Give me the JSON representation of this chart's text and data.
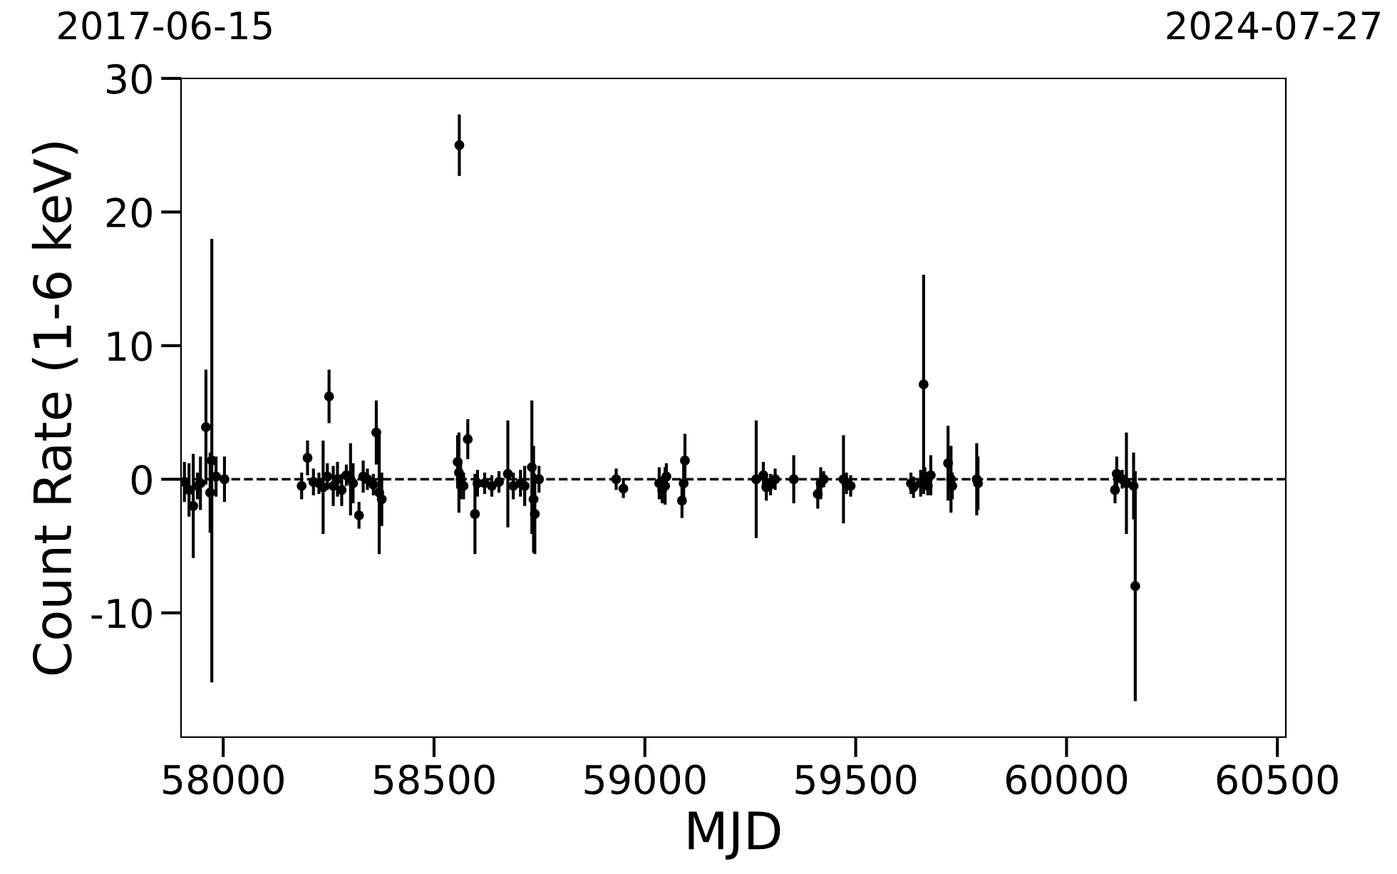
{
  "chart_data": {
    "type": "scatter",
    "xlabel": "MJD",
    "ylabel": "Count Rate (1-6 keV)",
    "xlim": [
      57900,
      60520
    ],
    "xticks": [
      58000,
      58500,
      59000,
      59500,
      60000,
      60500
    ],
    "ylim": [
      -19.3,
      30
    ],
    "yticks": [
      -10,
      0,
      10,
      20,
      30
    ],
    "annotations": [
      "2017-06-15",
      "2024-07-27"
    ],
    "marker": "circle",
    "grid": false,
    "legend": false,
    "ref_lines": [
      {
        "axis": "y",
        "value": 0,
        "color": "#000000",
        "line_style": "dashed"
      }
    ],
    "series": [
      {
        "color": "#000000",
        "x": [
          57908,
          57919,
          57929,
          57939,
          57946,
          57959,
          57969,
          57973,
          57983,
          58003,
          58186,
          58200,
          58214,
          58227,
          58237,
          58247,
          58251,
          58261,
          58271,
          58281,
          58292,
          58302,
          58308,
          58322,
          58332,
          58342,
          58356,
          58363,
          58370,
          58376,
          58556,
          58559,
          58560,
          58563,
          58570,
          58580,
          58597,
          58603,
          58620,
          58637,
          58654,
          58675,
          58688,
          58705,
          58715,
          58732,
          58736,
          58739,
          58749,
          58932,
          58949,
          59034,
          59041,
          59048,
          59051,
          59088,
          59092,
          59095,
          59264,
          59281,
          59288,
          59298,
          59309,
          59353,
          59410,
          59417,
          59424,
          59471,
          59478,
          59488,
          59631,
          59637,
          59654,
          59661,
          59664,
          59671,
          59678,
          59719,
          59726,
          59729,
          59787,
          59790,
          60115,
          60119,
          60132,
          60142,
          60159,
          60163
        ],
        "values": [
          -0.2,
          -0.8,
          -2.0,
          -0.5,
          -0.3,
          3.9,
          -1.0,
          1.4,
          0.2,
          0.0,
          -0.5,
          1.6,
          -0.2,
          -0.3,
          -0.6,
          0.2,
          6.2,
          -0.5,
          0.0,
          -0.8,
          0.3,
          0.0,
          -0.3,
          -2.7,
          0.2,
          0.0,
          -0.4,
          3.5,
          -1.0,
          -1.5,
          1.3,
          0.5,
          25.0,
          0.0,
          -0.5,
          3.0,
          -2.6,
          -0.3,
          -0.3,
          -0.5,
          -0.2,
          0.4,
          -0.5,
          -0.3,
          -0.5,
          0.9,
          -1.5,
          -2.6,
          0.0,
          0.0,
          -0.7,
          -0.3,
          -0.8,
          -0.5,
          0.2,
          -1.6,
          -0.3,
          1.4,
          0.0,
          0.3,
          -0.6,
          -0.4,
          0.0,
          0.0,
          -1.1,
          -0.3,
          0.0,
          0.0,
          -0.3,
          -0.5,
          -0.3,
          -0.6,
          -0.3,
          7.1,
          0.2,
          -0.5,
          0.3,
          1.2,
          0.0,
          -0.5,
          0.0,
          -0.3,
          -0.8,
          0.4,
          0.0,
          -0.3,
          -0.5,
          -8.0
        ],
        "errors": [
          1.5,
          2.0,
          3.9,
          1.0,
          2.0,
          4.3,
          3.0,
          16.6,
          1.5,
          1.7,
          1.0,
          1.3,
          1.0,
          0.8,
          3.5,
          1.0,
          2.0,
          1.5,
          1.3,
          1.2,
          0.8,
          2.7,
          1.5,
          1.0,
          1.2,
          0.8,
          0.8,
          2.4,
          4.6,
          2.0,
          2.0,
          3.0,
          2.3,
          1.5,
          1.0,
          1.5,
          3.0,
          1.0,
          0.8,
          0.8,
          0.8,
          4.0,
          1.0,
          1.0,
          1.5,
          5.0,
          4.0,
          3.0,
          1.0,
          0.8,
          0.7,
          1.2,
          1.0,
          1.4,
          1.0,
          1.3,
          1.5,
          2.0,
          4.4,
          1.0,
          1.0,
          0.8,
          0.8,
          1.8,
          1.1,
          1.2,
          0.6,
          3.3,
          0.8,
          0.8,
          0.8,
          0.8,
          1.0,
          8.2,
          0.7,
          0.7,
          1.5,
          2.8,
          2.5,
          1.0,
          2.7,
          2.0,
          1.0,
          1.3,
          0.7,
          3.8,
          2.5,
          8.6
        ]
      }
    ]
  }
}
